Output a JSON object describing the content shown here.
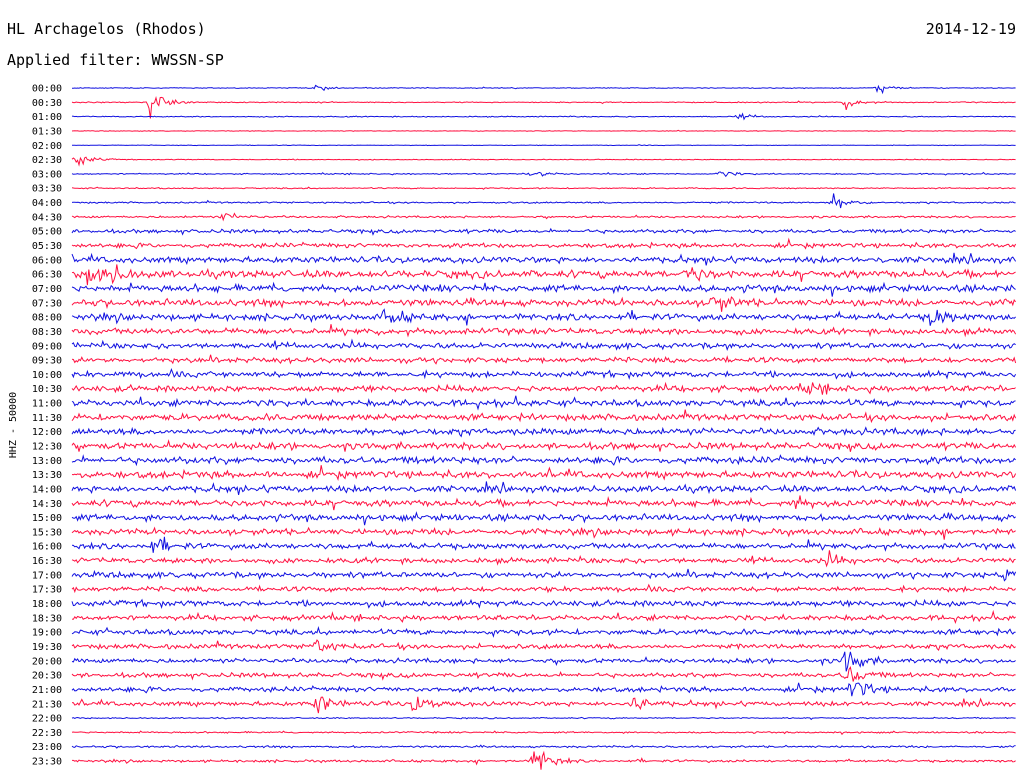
{
  "header": {
    "station": "HL Archagelos (Rhodos)",
    "date": "2014-12-19",
    "filter_prefix": "Applied filter:",
    "filter": "WWSSN-SP"
  },
  "chart_data": {
    "type": "line",
    "chart_kind": "helicorder",
    "ylabel": "HHZ - 50000",
    "line_start_times": [
      "00:00",
      "00:30",
      "01:00",
      "01:30",
      "02:00",
      "02:30",
      "03:00",
      "03:30",
      "04:00",
      "04:30",
      "05:00",
      "05:30",
      "06:00",
      "06:30",
      "07:00",
      "07:30",
      "08:00",
      "08:30",
      "09:00",
      "09:30",
      "10:00",
      "10:30",
      "11:00",
      "11:30",
      "12:00",
      "12:30",
      "13:00",
      "13:30",
      "14:00",
      "14:30",
      "15:00",
      "15:30",
      "16:00",
      "16:30",
      "17:00",
      "17:30",
      "18:00",
      "18:30",
      "19:00",
      "19:30",
      "20:00",
      "20:30",
      "21:00",
      "21:30",
      "22:00",
      "22:30",
      "23:00",
      "23:30"
    ],
    "minutes_per_line": 30,
    "colors": {
      "even_rows": "#1010e0",
      "odd_rows": "#ff1040"
    },
    "trace_amplitude_level": [
      0.04,
      0.05,
      0.05,
      0.03,
      0.03,
      0.04,
      0.06,
      0.06,
      0.08,
      0.1,
      0.18,
      0.22,
      0.3,
      0.36,
      0.34,
      0.34,
      0.32,
      0.3,
      0.28,
      0.26,
      0.28,
      0.3,
      0.32,
      0.32,
      0.32,
      0.32,
      0.34,
      0.34,
      0.32,
      0.32,
      0.32,
      0.3,
      0.28,
      0.26,
      0.28,
      0.24,
      0.28,
      0.26,
      0.26,
      0.24,
      0.22,
      0.22,
      0.24,
      0.22,
      0.06,
      0.08,
      0.1,
      0.12
    ],
    "events": [
      {
        "row": 0,
        "minute": 7.8,
        "amplitude": 0.35
      },
      {
        "row": 0,
        "minute": 25.6,
        "amplitude": 0.55
      },
      {
        "row": 1,
        "minute": 2.5,
        "amplitude": 1.6
      },
      {
        "row": 1,
        "minute": 24.6,
        "amplitude": 0.6
      },
      {
        "row": 2,
        "minute": 21.2,
        "amplitude": 0.3
      },
      {
        "row": 5,
        "minute": 0.1,
        "amplitude": 0.9
      },
      {
        "row": 6,
        "minute": 14.6,
        "amplitude": 0.45
      },
      {
        "row": 6,
        "minute": 20.6,
        "amplitude": 0.35
      },
      {
        "row": 8,
        "minute": 24.2,
        "amplitude": 0.9
      },
      {
        "row": 9,
        "minute": 4.8,
        "amplitude": 0.6
      },
      {
        "row": 13,
        "minute": 0.5,
        "amplitude": 1.2
      },
      {
        "row": 13,
        "minute": 1.2,
        "amplitude": 0.9
      },
      {
        "row": 13,
        "minute": 19.6,
        "amplitude": 0.9
      },
      {
        "row": 15,
        "minute": 20.4,
        "amplitude": 1.1
      },
      {
        "row": 16,
        "minute": 10.0,
        "amplitude": 0.9
      },
      {
        "row": 16,
        "minute": 27.3,
        "amplitude": 1.0
      },
      {
        "row": 21,
        "minute": 23.4,
        "amplitude": 0.6
      },
      {
        "row": 29,
        "minute": 23.0,
        "amplitude": 0.6
      },
      {
        "row": 32,
        "minute": 2.6,
        "amplitude": 0.8
      },
      {
        "row": 33,
        "minute": 24.0,
        "amplitude": 0.7
      },
      {
        "row": 34,
        "minute": 29.6,
        "amplitude": 0.6
      },
      {
        "row": 39,
        "minute": 7.7,
        "amplitude": 0.8
      },
      {
        "row": 40,
        "minute": 24.6,
        "amplitude": 1.4
      },
      {
        "row": 41,
        "minute": 24.6,
        "amplitude": 1.2
      },
      {
        "row": 42,
        "minute": 24.8,
        "amplitude": 1.3
      },
      {
        "row": 43,
        "minute": 7.8,
        "amplitude": 1.1
      },
      {
        "row": 43,
        "minute": 10.9,
        "amplitude": 1.0
      },
      {
        "row": 43,
        "minute": 17.8,
        "amplitude": 1.1
      },
      {
        "row": 47,
        "minute": 14.7,
        "amplitude": 1.9
      }
    ]
  }
}
